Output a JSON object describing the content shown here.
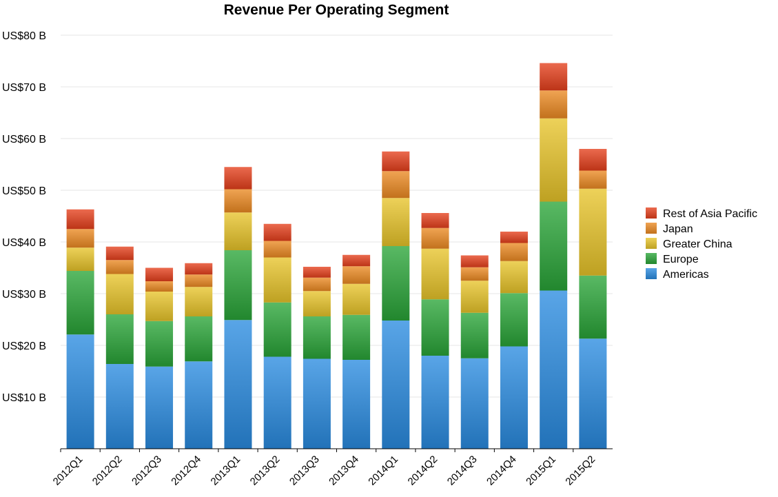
{
  "chart_data": {
    "type": "bar",
    "stacked": true,
    "title": "Revenue Per Operating Segment",
    "xlabel": "",
    "ylabel": "",
    "ylim": [
      0,
      80
    ],
    "yticks": [
      10,
      20,
      30,
      40,
      50,
      60,
      70,
      80
    ],
    "ytick_labels": [
      "US$10 B",
      "US$20 B",
      "US$30 B",
      "US$40 B",
      "US$50 B",
      "US$60 B",
      "US$70 B",
      "US$80 B"
    ],
    "grid": true,
    "legend_position": "right",
    "categories": [
      "2012Q1",
      "2012Q2",
      "2012Q3",
      "2012Q4",
      "2013Q1",
      "2013Q2",
      "2013Q3",
      "2013Q4",
      "2014Q1",
      "2014Q2",
      "2014Q3",
      "2014Q4",
      "2015Q1",
      "2015Q2"
    ],
    "series": [
      {
        "name": "Americas",
        "color": "#2a8be0",
        "values": [
          22.1,
          16.4,
          15.9,
          16.9,
          24.9,
          17.8,
          17.4,
          17.2,
          24.8,
          18.0,
          17.5,
          19.8,
          30.6,
          21.3
        ]
      },
      {
        "name": "Europe",
        "color": "#2aa538",
        "values": [
          12.3,
          9.6,
          8.8,
          8.7,
          13.5,
          10.5,
          8.2,
          8.7,
          14.4,
          10.9,
          8.8,
          10.3,
          17.2,
          12.2
        ]
      },
      {
        "name": "Greater China",
        "color": "#e8c42a",
        "values": [
          4.5,
          7.8,
          5.7,
          5.7,
          7.3,
          8.7,
          4.9,
          6.0,
          9.3,
          9.8,
          6.2,
          6.2,
          16.1,
          16.8
        ]
      },
      {
        "name": "Japan",
        "color": "#ec8a22",
        "values": [
          3.6,
          2.7,
          2.0,
          2.4,
          4.5,
          3.2,
          2.6,
          3.4,
          5.2,
          4.0,
          2.6,
          3.5,
          5.4,
          3.5
        ]
      },
      {
        "name": "Rest of Asia Pacific",
        "color": "#e5401c",
        "values": [
          3.8,
          2.6,
          2.6,
          2.2,
          4.3,
          3.3,
          2.1,
          2.2,
          3.8,
          2.9,
          2.3,
          2.2,
          5.3,
          4.2
        ]
      }
    ]
  }
}
